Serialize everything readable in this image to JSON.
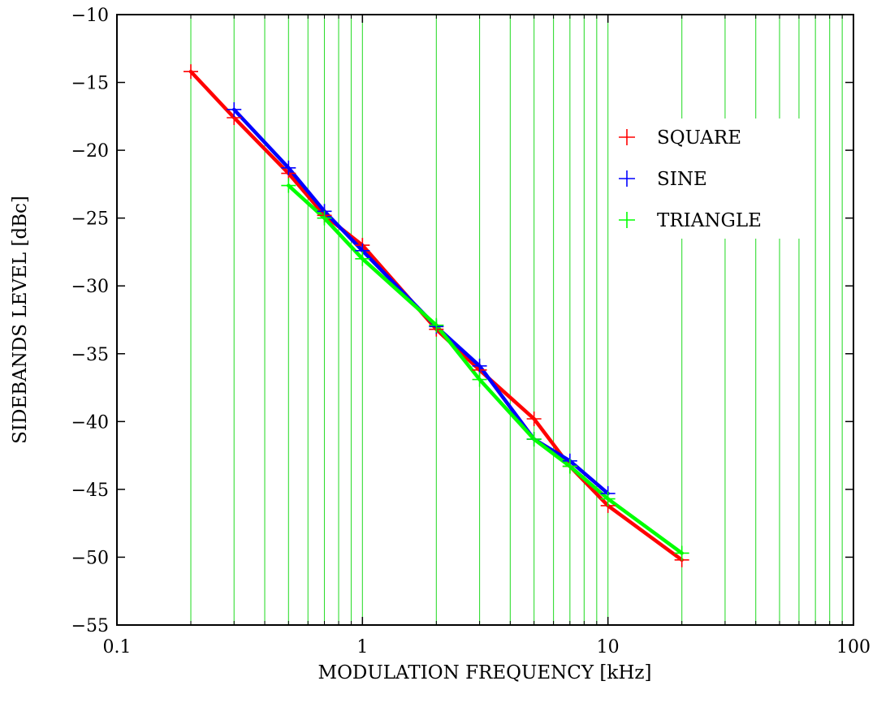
{
  "chart_data": {
    "type": "line",
    "xlabel": "MODULATION FREQUENCY [kHz]",
    "ylabel": "SIDEBANDS LEVEL [dBc]",
    "x_scale": "log",
    "xlim": [
      0.1,
      100
    ],
    "ylim": [
      -55,
      -10
    ],
    "x_ticks": [
      0.1,
      1,
      10,
      100
    ],
    "x_tick_labels": [
      "0.1",
      "1",
      "10",
      "100"
    ],
    "y_ticks": [
      -55,
      -50,
      -45,
      -40,
      -35,
      -30,
      -25,
      -20,
      -15,
      -10
    ],
    "y_tick_labels": [
      "−55",
      "−50",
      "−45",
      "−40",
      "−35",
      "−30",
      "−25",
      "−20",
      "−15",
      "−10"
    ],
    "grid": "vertical-minor",
    "grid_x": [
      0.2,
      0.3,
      0.4,
      0.5,
      0.6,
      0.7,
      0.8,
      0.9,
      1,
      2,
      3,
      4,
      5,
      6,
      7,
      8,
      9,
      10,
      20,
      30,
      40,
      50,
      60,
      70,
      80,
      90
    ],
    "legend_position": "upper-right",
    "series": [
      {
        "name": "SQUARE",
        "color": "#ff0000",
        "x": [
          0.2,
          0.3,
          0.5,
          0.7,
          1,
          2,
          3,
          5,
          7,
          10,
          20
        ],
        "y": [
          -14.2,
          -17.6,
          -21.7,
          -24.8,
          -27.0,
          -33.2,
          -36.2,
          -39.8,
          -43.3,
          -46.2,
          -50.2
        ]
      },
      {
        "name": "SINE",
        "color": "#0000ff",
        "x": [
          0.3,
          0.5,
          0.7,
          1,
          2,
          3,
          5,
          7,
          10
        ],
        "y": [
          -17.0,
          -21.3,
          -24.5,
          -27.4,
          -33.0,
          -35.9,
          -41.3,
          -42.9,
          -45.3
        ]
      },
      {
        "name": "TRIANGLE",
        "color": "#00ff00",
        "x": [
          0.5,
          0.7,
          1,
          2,
          3,
          5,
          7,
          10,
          20
        ],
        "y": [
          -22.6,
          -25.0,
          -28.0,
          -32.9,
          -36.9,
          -41.3,
          -43.3,
          -45.7,
          -49.7
        ]
      }
    ]
  }
}
